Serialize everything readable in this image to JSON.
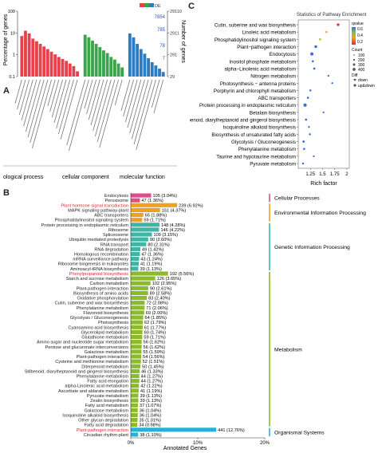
{
  "figure": {
    "panels": [
      "A",
      "B",
      "C"
    ]
  },
  "panelA": {
    "left_axis_label": "Percentage of genes",
    "right_axis_label": "Number of genes",
    "left_ticks": [
      "100",
      "10",
      "1",
      "0.1"
    ],
    "right_ticks": [
      "29110",
      "2911",
      "291",
      "29"
    ],
    "series_labels": [
      "7854",
      "785",
      "78",
      "7"
    ],
    "legend_badge": "DE",
    "groups": [
      "biological process",
      "cellular component",
      "molecular function"
    ],
    "group_colors": [
      "#e8414e",
      "#3aa54a",
      "#2b7cc1"
    ],
    "group_labels_visible": [
      "ological process",
      "cellular component",
      "molecular function"
    ],
    "bars": [
      {
        "g": 0,
        "v": 62
      },
      {
        "g": 0,
        "v": 70
      },
      {
        "g": 0,
        "v": 66
      },
      {
        "g": 0,
        "v": 58
      },
      {
        "g": 0,
        "v": 54
      },
      {
        "g": 0,
        "v": 50
      },
      {
        "g": 0,
        "v": 46
      },
      {
        "g": 0,
        "v": 42
      },
      {
        "g": 0,
        "v": 38
      },
      {
        "g": 0,
        "v": 34
      },
      {
        "g": 0,
        "v": 30
      },
      {
        "g": 0,
        "v": 27
      },
      {
        "g": 0,
        "v": 24
      },
      {
        "g": 0,
        "v": 20
      },
      {
        "g": 0,
        "v": 16
      },
      {
        "g": 0,
        "v": 8
      },
      {
        "g": 1,
        "v": 64
      },
      {
        "g": 1,
        "v": 60
      },
      {
        "g": 1,
        "v": 55
      },
      {
        "g": 1,
        "v": 50
      },
      {
        "g": 1,
        "v": 45
      },
      {
        "g": 1,
        "v": 40
      },
      {
        "g": 1,
        "v": 36
      },
      {
        "g": 1,
        "v": 30
      },
      {
        "g": 1,
        "v": 26
      },
      {
        "g": 1,
        "v": 20
      },
      {
        "g": 1,
        "v": 14
      },
      {
        "g": 2,
        "v": 66
      },
      {
        "g": 2,
        "v": 60
      },
      {
        "g": 2,
        "v": 50
      },
      {
        "g": 2,
        "v": 42
      },
      {
        "g": 2,
        "v": 35
      },
      {
        "g": 2,
        "v": 28
      },
      {
        "g": 2,
        "v": 22
      },
      {
        "g": 2,
        "v": 17
      },
      {
        "g": 2,
        "v": 12
      },
      {
        "g": 2,
        "v": 7
      }
    ]
  },
  "panelB": {
    "xlabel": "Annotated Genes",
    "xticks": [
      "0%",
      "10%",
      "20%"
    ],
    "xlim": [
      0,
      20
    ],
    "categories": [
      {
        "name": "Cellular Processes",
        "color": "#e04b8c"
      },
      {
        "name": "Environmental Information Processing",
        "color": "#f0a020"
      },
      {
        "name": "Genetic Information Processing",
        "color": "#3fb5a5"
      },
      {
        "name": "Metabolism",
        "color": "#8cba2c"
      },
      {
        "name": "Organismal Systems",
        "color": "#29b0d8"
      }
    ],
    "rows": [
      {
        "label": "Endocytosis",
        "value_text": "105 (3.04%)",
        "pct": 3.04,
        "cat": 0,
        "red": false
      },
      {
        "label": "Peroxisome",
        "value_text": "47 (1.36%)",
        "pct": 1.36,
        "cat": 0,
        "red": false
      },
      {
        "label": "Plant hormone signal transduction",
        "value_text": "239 (6.92%)",
        "pct": 6.92,
        "cat": 1,
        "red": true
      },
      {
        "label": "MAPK signaling pathway-plant",
        "value_text": "151 (4.37%)",
        "pct": 4.37,
        "cat": 1,
        "red": false
      },
      {
        "label": "ABC transporters",
        "value_text": "65 (1.88%)",
        "pct": 1.88,
        "cat": 1,
        "red": false
      },
      {
        "label": "Phosphatidylinositol signaling system",
        "value_text": "59 (1.71%)",
        "pct": 1.71,
        "cat": 1,
        "red": false
      },
      {
        "label": "Protein processing in endoplasmic reticulum",
        "value_text": "148 (4.28%)",
        "pct": 4.28,
        "cat": 2,
        "red": false
      },
      {
        "label": "Ribosome",
        "value_text": "146 (4.22%)",
        "pct": 4.22,
        "cat": 2,
        "red": false
      },
      {
        "label": "Spliceosome",
        "value_text": "109 (3.15%)",
        "pct": 3.15,
        "cat": 2,
        "red": false
      },
      {
        "label": "Ubiquitin mediated proteolysis",
        "value_text": "90 (2.60%)",
        "pct": 2.6,
        "cat": 2,
        "red": false
      },
      {
        "label": "RNA transport",
        "value_text": "80 (2.31%)",
        "pct": 2.31,
        "cat": 2,
        "red": false
      },
      {
        "label": "RNA degradation",
        "value_text": "49 (1.42%)",
        "pct": 1.42,
        "cat": 2,
        "red": false
      },
      {
        "label": "Homologous recombination",
        "value_text": "47 (1.36%)",
        "pct": 1.36,
        "cat": 2,
        "red": false
      },
      {
        "label": "mRNA surveillance pathway",
        "value_text": "43 (1.24%)",
        "pct": 1.24,
        "cat": 2,
        "red": false
      },
      {
        "label": "Ribosome biogenesis in eukaryotes",
        "value_text": "41 (1.19%)",
        "pct": 1.19,
        "cat": 2,
        "red": false
      },
      {
        "label": "Aminoacyl-tRNA biosynthesis",
        "value_text": "39 (1.13%)",
        "pct": 1.13,
        "cat": 2,
        "red": false
      },
      {
        "label": "Phenylpropanoid biosynthesis",
        "value_text": "192 (5.56%)",
        "pct": 5.56,
        "cat": 3,
        "red": true
      },
      {
        "label": "Starch and sucrose metabolism",
        "value_text": "126 (3.65%)",
        "pct": 3.65,
        "cat": 3,
        "red": false
      },
      {
        "label": "Carbon metabolism",
        "value_text": "102 (2.95%)",
        "pct": 2.95,
        "cat": 3,
        "red": false
      },
      {
        "label": "Plant-pathogen interaction",
        "value_text": "90 (2.61%)",
        "pct": 2.61,
        "cat": 3,
        "red": false
      },
      {
        "label": "Biosynthesis of amino acids",
        "value_text": "89 (2.58%)",
        "pct": 2.58,
        "cat": 3,
        "red": false
      },
      {
        "label": "Oxidative phosphorylation",
        "value_text": "83 (2.40%)",
        "pct": 2.4,
        "cat": 3,
        "red": false
      },
      {
        "label": "Cutin, suberine and wax biosynthesis",
        "value_text": "72 (2.08%)",
        "pct": 2.08,
        "cat": 3,
        "red": false
      },
      {
        "label": "Phenylalanine metabolism",
        "value_text": "71 (2.06%)",
        "pct": 2.06,
        "cat": 3,
        "red": false
      },
      {
        "label": "Flavonoid biosynthesis",
        "value_text": "69 (2.00%)",
        "pct": 2.0,
        "cat": 3,
        "red": false
      },
      {
        "label": "Glycolysis / Gluconeogenesis",
        "value_text": "64 (1.85%)",
        "pct": 1.85,
        "cat": 3,
        "red": false
      },
      {
        "label": "Photosynthesis",
        "value_text": "62 (1.79%)",
        "pct": 1.79,
        "cat": 3,
        "red": false
      },
      {
        "label": "Cyanoamino acid biosynthesis",
        "value_text": "61 (1.77%)",
        "pct": 1.77,
        "cat": 3,
        "red": false
      },
      {
        "label": "Glycerolipid metabolism",
        "value_text": "60 (1.74%)",
        "pct": 1.74,
        "cat": 3,
        "red": false
      },
      {
        "label": "Glutathione metabolism",
        "value_text": "59 (1.71%)",
        "pct": 1.71,
        "cat": 3,
        "red": false
      },
      {
        "label": "Amino sugar and nucleotide sugar metabolism",
        "value_text": "56 (1.62%)",
        "pct": 1.62,
        "cat": 3,
        "red": false
      },
      {
        "label": "Pentose and glucuronate interconversions",
        "value_text": "56 (1.62%)",
        "pct": 1.62,
        "cat": 3,
        "red": false
      },
      {
        "label": "Galactose metabolism",
        "value_text": "55 (1.59%)",
        "pct": 1.59,
        "cat": 3,
        "red": false
      },
      {
        "label": "Plant-pathogen interaction",
        "value_text": "54 (1.56%)",
        "pct": 1.56,
        "cat": 3,
        "red": false
      },
      {
        "label": "Cysteine and methionine metabolism",
        "value_text": "52 (1.51%)",
        "pct": 1.51,
        "cat": 3,
        "red": false
      },
      {
        "label": "Diterpenoid metabolism",
        "value_text": "50 (1.45%)",
        "pct": 1.45,
        "cat": 3,
        "red": false
      },
      {
        "label": "Stilbenoid, diarylheptanoid and gingerol biosynthesis",
        "value_text": "46 (1.33%)",
        "pct": 1.33,
        "cat": 3,
        "red": false
      },
      {
        "label": "Phenylalanine metabolism",
        "value_text": "44 (1.27%)",
        "pct": 1.27,
        "cat": 3,
        "red": false
      },
      {
        "label": "Fatty acid elongation",
        "value_text": "44 (1.27%)",
        "pct": 1.27,
        "cat": 3,
        "red": false
      },
      {
        "label": "alpha-Linolenic acid metabolism",
        "value_text": "42 (1.22%)",
        "pct": 1.22,
        "cat": 3,
        "red": false
      },
      {
        "label": "Ascorbate and aldarate metabolism",
        "value_text": "41 (1.19%)",
        "pct": 1.19,
        "cat": 3,
        "red": false
      },
      {
        "label": "Pyruvate metabolism",
        "value_text": "39 (1.13%)",
        "pct": 1.13,
        "cat": 3,
        "red": false
      },
      {
        "label": "Zeatin biosynthesis",
        "value_text": "39 (1.13%)",
        "pct": 1.13,
        "cat": 3,
        "red": false
      },
      {
        "label": "Fatty acid metabolism",
        "value_text": "37 (1.07%)",
        "pct": 1.07,
        "cat": 3,
        "red": false
      },
      {
        "label": "Galactose metabolism",
        "value_text": "36 (1.04%)",
        "pct": 1.04,
        "cat": 3,
        "red": false
      },
      {
        "label": "Isoquinoline alkaloid biosynthesis",
        "value_text": "36 (1.04%)",
        "pct": 1.04,
        "cat": 3,
        "red": false
      },
      {
        "label": "Other glycan degradation",
        "value_text": "35 (1.01%)",
        "pct": 1.01,
        "cat": 3,
        "red": false
      },
      {
        "label": "Fatty acid degradation",
        "value_text": "34 (0.98%)",
        "pct": 0.98,
        "cat": 3,
        "red": false
      },
      {
        "label": "Plant-pathogen interaction",
        "value_text": "441 (12.76%)",
        "pct": 12.76,
        "cat": 4,
        "red": true
      },
      {
        "label": "Circadian rhythm-plant",
        "value_text": "38 (1.10%)",
        "pct": 1.1,
        "cat": 4,
        "red": false
      }
    ]
  },
  "panelC": {
    "title": "Statistics of Pathway Enrichment",
    "xlabel": "Rich factor",
    "xticks": [
      "1.25",
      "1.5",
      "1.75",
      "2"
    ],
    "xlim": [
      1.0,
      2.05
    ],
    "legend_qvalue_title": "qvalue",
    "legend_qvalue_ticks": [
      "0.6",
      "0.4",
      "0.2"
    ],
    "legend_count_title": "Count",
    "legend_count_items": [
      "100",
      "200",
      "300",
      "400"
    ],
    "legend_diff_title": "Diff",
    "legend_diff_items": [
      "down",
      "up&down"
    ],
    "pathways": [
      {
        "label": "Cutin, suberine and wax biosynthesis",
        "rich": 1.82,
        "q": 0.02,
        "n": 12
      },
      {
        "label": "Linoleic acid metabolism",
        "rich": 1.58,
        "q": 0.25,
        "n": 6
      },
      {
        "label": "Phosphatidylinositol signaling system",
        "rich": 1.45,
        "q": 0.4,
        "n": 8
      },
      {
        "label": "Plant−pathogen interaction",
        "rich": 1.36,
        "q": 0.5,
        "n": 14
      },
      {
        "label": "Endocytosis",
        "rich": 1.28,
        "q": 0.6,
        "n": 18
      },
      {
        "label": "Inositol phosphate metabolism",
        "rich": 1.3,
        "q": 0.58,
        "n": 7
      },
      {
        "label": "alpha−Linolenic acid metabolism",
        "rich": 1.33,
        "q": 0.6,
        "n": 8
      },
      {
        "label": "Nitrogen metabolism",
        "rich": 1.62,
        "q": 0.55,
        "n": 5
      },
      {
        "label": "Photosynthesis − antenna proteins",
        "rich": 1.7,
        "q": 0.6,
        "n": 5
      },
      {
        "label": "Porphyrin and chlorophyll metabolism",
        "rich": 1.25,
        "q": 0.62,
        "n": 6
      },
      {
        "label": "ABC transporters",
        "rich": 1.2,
        "q": 0.62,
        "n": 7
      },
      {
        "label": "Protein processing in endoplasmic reticulum",
        "rich": 1.14,
        "q": 0.62,
        "n": 20
      },
      {
        "label": "Betalain biosynthesis",
        "rich": 1.52,
        "q": 0.62,
        "n": 4
      },
      {
        "label": "Stilbenoid, diarylheptanoid and gingerol biosynthesis",
        "rich": 1.16,
        "q": 0.62,
        "n": 8
      },
      {
        "label": "Isoquinoline alkaloid biosynthesis",
        "rich": 1.22,
        "q": 0.62,
        "n": 5
      },
      {
        "label": "Biosynthesis of unsaturated fatty acids",
        "rich": 1.24,
        "q": 0.62,
        "n": 6
      },
      {
        "label": "Glycolysis / Gluconeogenesis",
        "rich": 1.11,
        "q": 0.62,
        "n": 9
      },
      {
        "label": "Phenylalanine metabolism",
        "rich": 1.12,
        "q": 0.62,
        "n": 7
      },
      {
        "label": "Taurine and hypotaurine metabolism",
        "rich": 1.32,
        "q": 0.62,
        "n": 4
      },
      {
        "label": "Pyruvate metabolism",
        "rich": 1.1,
        "q": 0.62,
        "n": 6
      }
    ]
  }
}
